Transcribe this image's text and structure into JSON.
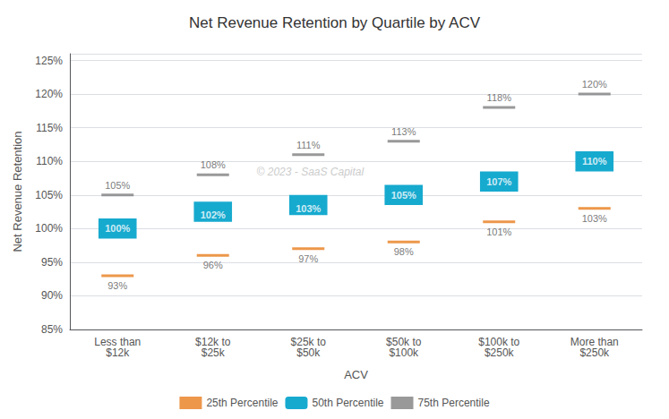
{
  "chart_data": {
    "type": "bar",
    "title": "Net Revenue Retention by Quartile by ACV",
    "xlabel": "ACV",
    "ylabel": "Net Revenue Retention",
    "categories": [
      "Less than\n$12k",
      "$12k to\n$25k",
      "$25k to\n$50k",
      "$50k to\n$100k",
      "$100k to\n$250k",
      "More than\n$250k"
    ],
    "series": [
      {
        "name": "25th Percentile",
        "type": "scatter",
        "marker": "dash",
        "color": "#e87d1e",
        "values": [
          93,
          96,
          97,
          98,
          101,
          103
        ],
        "value_labels": [
          "93%",
          "96%",
          "97%",
          "98%",
          "101%",
          "103%"
        ],
        "data_labels": true
      },
      {
        "name": "50th Percentile",
        "type": "bar",
        "color": "#17aacf",
        "values": [
          100,
          102,
          103,
          105,
          107,
          110
        ],
        "value_labels": [
          "100%",
          "102%",
          "103%",
          "105%",
          "107%",
          "110%"
        ],
        "data_labels": true,
        "bar_bottom": [
          98.5,
          101,
          102,
          103.5,
          105.5,
          108.5
        ],
        "bar_height": [
          3,
          3,
          3,
          3,
          3,
          3
        ]
      },
      {
        "name": "75th Percentile",
        "type": "scatter",
        "marker": "dash",
        "color": "#808080",
        "values": [
          105,
          108,
          111,
          113,
          118,
          120
        ],
        "value_labels": [
          "105%",
          "108%",
          "111%",
          "113%",
          "118%",
          "120%"
        ],
        "data_labels": true
      }
    ],
    "ylim": [
      85,
      126
    ],
    "yticks": [
      {
        "value": 85,
        "label": "85%"
      },
      {
        "value": 90,
        "label": "90%"
      },
      {
        "value": 95,
        "label": "95%"
      },
      {
        "value": 100,
        "label": "100%"
      },
      {
        "value": 105,
        "label": "105%"
      },
      {
        "value": 110,
        "label": "110%"
      },
      {
        "value": 115,
        "label": "115%"
      },
      {
        "value": 120,
        "label": "120%"
      },
      {
        "value": 125,
        "label": "125%"
      }
    ],
    "grid": true,
    "legend": "bottom",
    "annotations": [
      "© 2023 - SaaS Capital"
    ]
  }
}
